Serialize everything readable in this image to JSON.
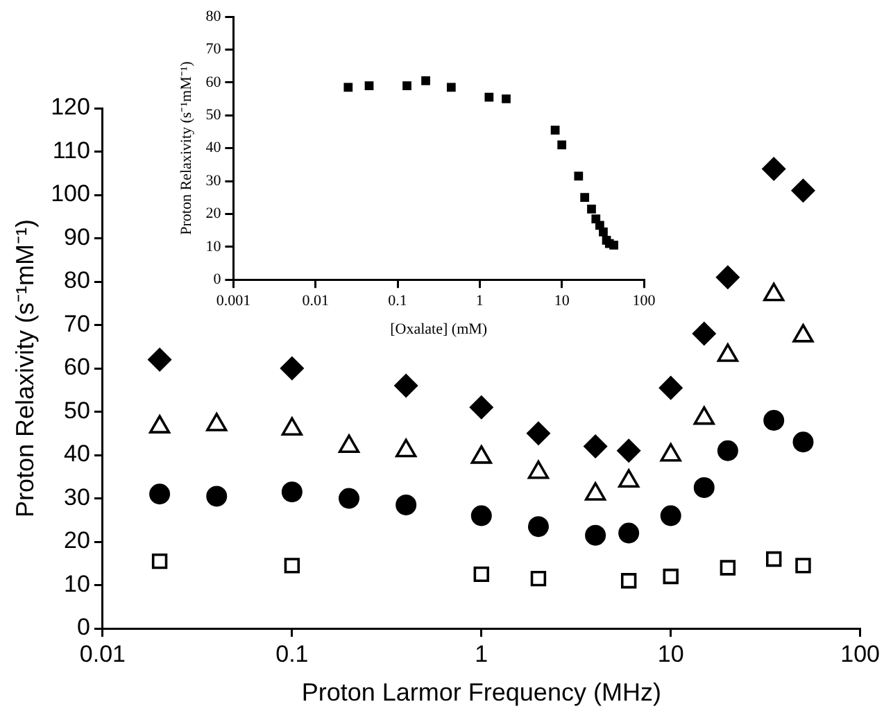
{
  "chart_data": [
    {
      "type": "scatter",
      "xlabel": "Proton Larmor Frequency (MHz)",
      "ylabel": "Proton Relaxivity (s⁻¹mM⁻¹)",
      "log": "x",
      "xlim": [
        0.01,
        100
      ],
      "xticks": [
        0.01,
        0.1,
        1,
        10,
        100
      ],
      "ylim": [
        0,
        120
      ],
      "yticks": [
        0,
        10,
        20,
        30,
        40,
        50,
        60,
        70,
        80,
        90,
        100,
        110,
        120
      ],
      "grid": false,
      "legend": false,
      "series": [
        {
          "color": "#000000",
          "marker": "diamond",
          "x": [
            0.02,
            0.1,
            0.4,
            1,
            2,
            4,
            6,
            10,
            15,
            20,
            35,
            50
          ],
          "values": [
            62,
            60,
            56,
            51,
            45,
            42,
            41,
            55.5,
            68,
            81,
            106,
            101
          ]
        },
        {
          "color": "#000000",
          "marker": "triangle",
          "x": [
            0.02,
            0.04,
            0.1,
            0.2,
            0.4,
            1,
            2,
            4,
            6,
            10,
            15,
            20,
            35,
            50
          ],
          "values": [
            46.5,
            47,
            46,
            42,
            41,
            39.5,
            36,
            31,
            34,
            40,
            48.5,
            63,
            77,
            67.5
          ]
        },
        {
          "color": "#000000",
          "marker": "circle",
          "x": [
            0.02,
            0.04,
            0.1,
            0.2,
            0.4,
            1,
            2,
            4,
            6,
            10,
            15,
            20,
            35,
            50
          ],
          "values": [
            31,
            30.5,
            31.5,
            30,
            28.5,
            26,
            23.5,
            21.5,
            22,
            26,
            32.5,
            41,
            48,
            43
          ]
        },
        {
          "color": "#000000",
          "marker": "square",
          "x": [
            0.02,
            0.1,
            1,
            2,
            6,
            10,
            20,
            35,
            50
          ],
          "values": [
            15.5,
            14.5,
            12.5,
            11.5,
            11,
            12,
            14,
            16,
            14.5
          ]
        }
      ]
    },
    {
      "type": "scatter",
      "xlabel": "[Oxalate] (mM)",
      "ylabel": "Proton Relaxivity (s⁻¹mM⁻¹)",
      "log": "x",
      "xlim": [
        0.001,
        100
      ],
      "xticks": [
        0.001,
        0.01,
        0.1,
        1,
        10,
        100
      ],
      "ylim": [
        0,
        80
      ],
      "yticks": [
        0,
        10,
        20,
        30,
        40,
        50,
        60,
        70,
        80
      ],
      "grid": false,
      "legend": false,
      "series": [
        {
          "color": "#000000",
          "marker": "square",
          "x": [
            0.025,
            0.045,
            0.13,
            0.22,
            0.45,
            1.3,
            2.1,
            8.3,
            10,
            16,
            19,
            23,
            26,
            29,
            32,
            35,
            38,
            43
          ],
          "values": [
            58.5,
            59,
            59,
            60.5,
            58.5,
            55.5,
            55,
            45.5,
            41,
            31.5,
            25,
            21.5,
            18.5,
            16.5,
            14.5,
            12,
            11,
            10.5
          ]
        }
      ]
    }
  ]
}
